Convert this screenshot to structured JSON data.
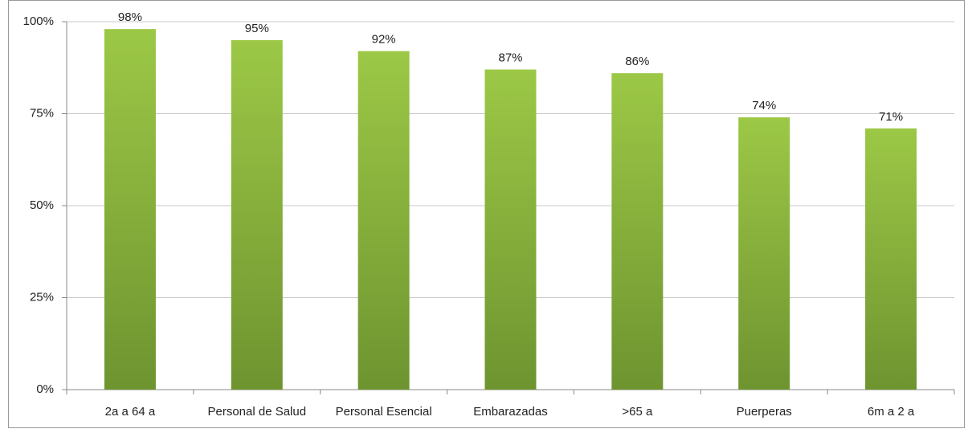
{
  "chart_data": {
    "type": "bar",
    "categories": [
      "2a a 64 a",
      "Personal de Salud",
      "Personal Esencial",
      "Embarazadas",
      ">65 a",
      "Puerperas",
      "6m a 2 a"
    ],
    "values": [
      98,
      95,
      92,
      87,
      86,
      74,
      71
    ],
    "value_labels": [
      "98%",
      "95%",
      "92%",
      "87%",
      "86%",
      "74%",
      "71%"
    ],
    "color": "#8db83f",
    "ylim": [
      0,
      100
    ],
    "yticks": [
      {
        "value": 0,
        "label": "0%"
      },
      {
        "value": 25,
        "label": "25%"
      },
      {
        "value": 50,
        "label": "50%"
      },
      {
        "value": 75,
        "label": "75%"
      },
      {
        "value": 100,
        "label": "100%"
      }
    ],
    "grid": true
  }
}
